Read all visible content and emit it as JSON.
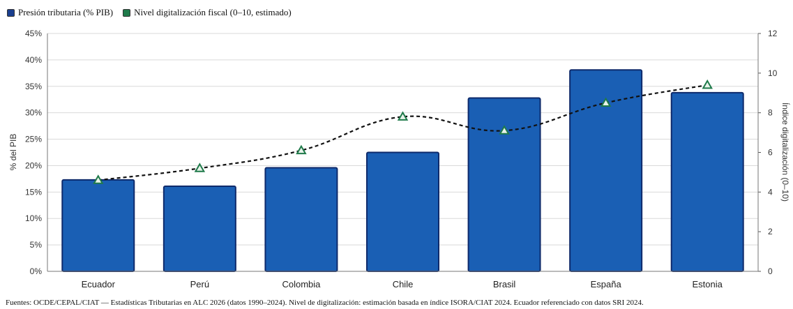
{
  "legend": {
    "items": [
      {
        "label": "Presión tributaria (% PIB)",
        "color": "#1a3f8f"
      },
      {
        "label": "Nivel digitalización fiscal (0–10, estimado)",
        "color": "#1f7a4a"
      }
    ]
  },
  "source_note": "Fuentes: OCDE/CEPAL/CIAT — Estadísticas Tributarias en ALC 2026 (datos 1990–2024). Nivel de digitalización: estimación basada en índice ISORA/CIAT 2024. Ecuador referenciado con datos SRI 2024.",
  "chart_data": {
    "type": "bar",
    "categories": [
      "Ecuador",
      "Perú",
      "Colombia",
      "Chile",
      "Brasil",
      "España",
      "Estonia"
    ],
    "series": [
      {
        "name": "Presión tributaria (% PIB)",
        "type": "bar",
        "axis": "left",
        "values": [
          17.3,
          16.1,
          19.6,
          22.5,
          32.8,
          38.1,
          33.8
        ],
        "color": "#1a5fb4"
      },
      {
        "name": "Nivel digitalización fiscal (0–10, estimado)",
        "type": "line",
        "axis": "right",
        "values": [
          4.6,
          5.2,
          6.1,
          7.8,
          7.1,
          8.5,
          9.4
        ],
        "color": "#1f7a4a",
        "line_style": "dashed",
        "marker": "triangle"
      }
    ],
    "ylabel": "% del PIB",
    "ylabel_right": "Índice digitalización (0–10)",
    "ylim": [
      0,
      45
    ],
    "yticks": [
      "0%",
      "5%",
      "10%",
      "15%",
      "20%",
      "25%",
      "30%",
      "35%",
      "40%",
      "45%"
    ],
    "ylim_right": [
      0,
      12
    ],
    "yticks_right": [
      "0",
      "2",
      "4",
      "6",
      "8",
      "10",
      "12"
    ],
    "grid": true,
    "legend_position": "top-left"
  }
}
